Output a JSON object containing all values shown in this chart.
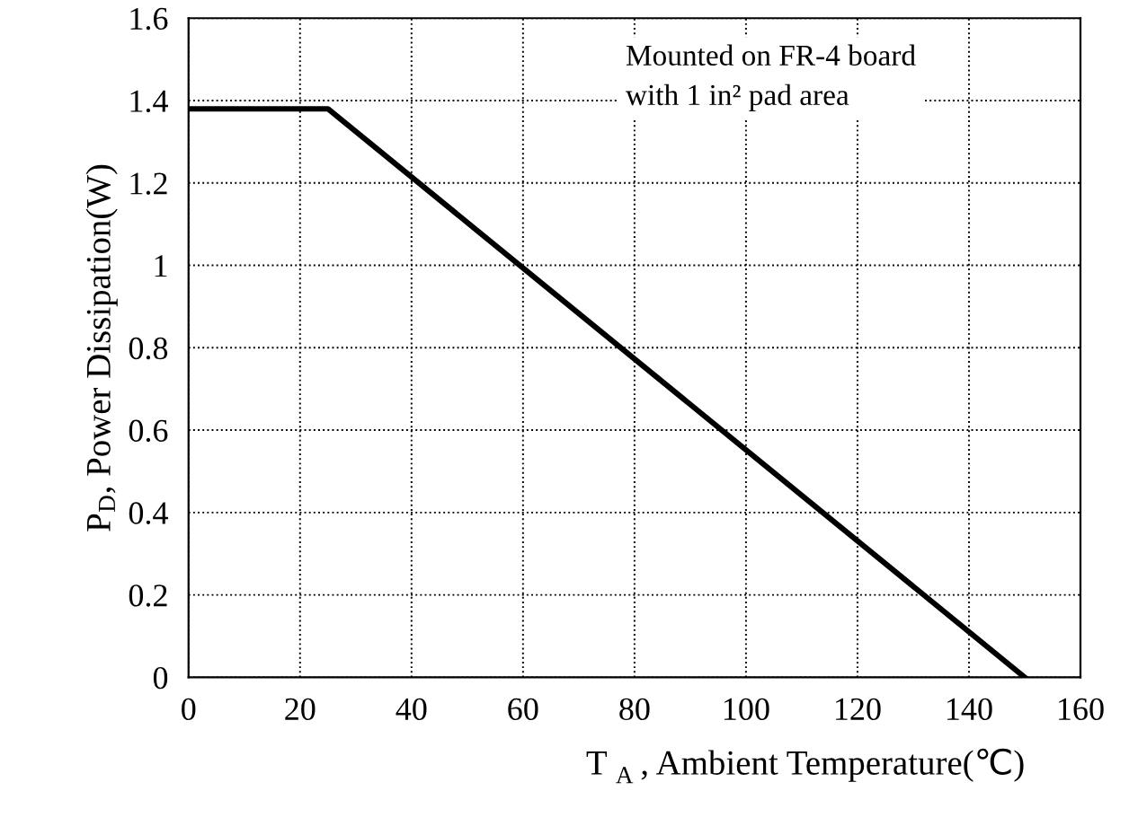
{
  "chart_data": {
    "type": "line",
    "xlabel": "T$_{A}$, Ambient Temperature(℃)",
    "ylabel": "P$_{D}$, Power Dissipation(W)",
    "annotations": [
      "Mounted on FR-4 board\nwith 1 in² pad area"
    ],
    "series": [
      {
        "color": "#000000",
        "x": [
          0,
          25,
          150
        ],
        "values": [
          1.38,
          1.38,
          0
        ]
      }
    ],
    "xlim": [
      0,
      160
    ],
    "xticks": [
      0,
      20,
      40,
      60,
      80,
      100,
      120,
      140,
      160
    ],
    "ylim": [
      0,
      1.6
    ],
    "yticks": [
      0,
      {
        "value": 0.2,
        "label": "0.2"
      },
      {
        "value": 0.4,
        "label": "0.4"
      },
      {
        "value": 0.6,
        "label": "0.6"
      },
      {
        "value": 0.8,
        "label": "0.8"
      },
      1,
      {
        "value": 1.2,
        "label": "1.2"
      },
      {
        "value": 1.4,
        "label": "1.4"
      },
      {
        "value": 1.6,
        "label": "1.6"
      }
    ],
    "grid": true,
    "line_style": "solid",
    "marker": "none",
    "legend": false
  }
}
